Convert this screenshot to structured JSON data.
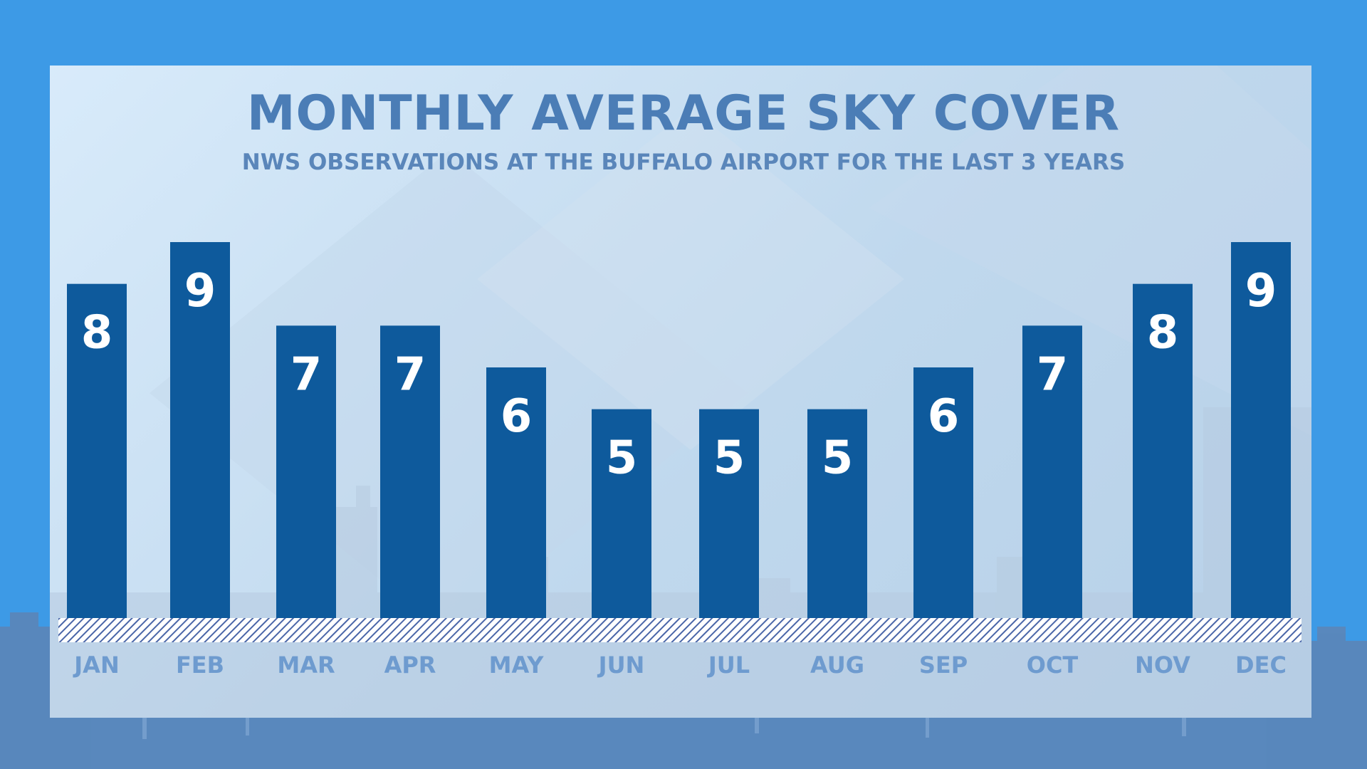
{
  "chart_data": {
    "type": "bar",
    "title": "MONTHLY AVERAGE SKY COVER",
    "subtitle": "NWS OBSERVATIONS AT THE BUFFALO AIRPORT FOR THE LAST 3 YEARS",
    "categories": [
      "JAN",
      "FEB",
      "MAR",
      "APR",
      "MAY",
      "JUN",
      "JUL",
      "AUG",
      "SEP",
      "OCT",
      "NOV",
      "DEC"
    ],
    "values": [
      8,
      9,
      7,
      7,
      6,
      5,
      5,
      5,
      6,
      7,
      8,
      9
    ],
    "xlabel": "",
    "ylabel": "",
    "ylim": [
      0,
      10
    ],
    "grid": false,
    "legend": "none"
  },
  "colors": {
    "bar": "#0e5a9c",
    "value_text": "#ffffff",
    "tick_text": "#6e9bcf",
    "title": "#4b7db6"
  }
}
